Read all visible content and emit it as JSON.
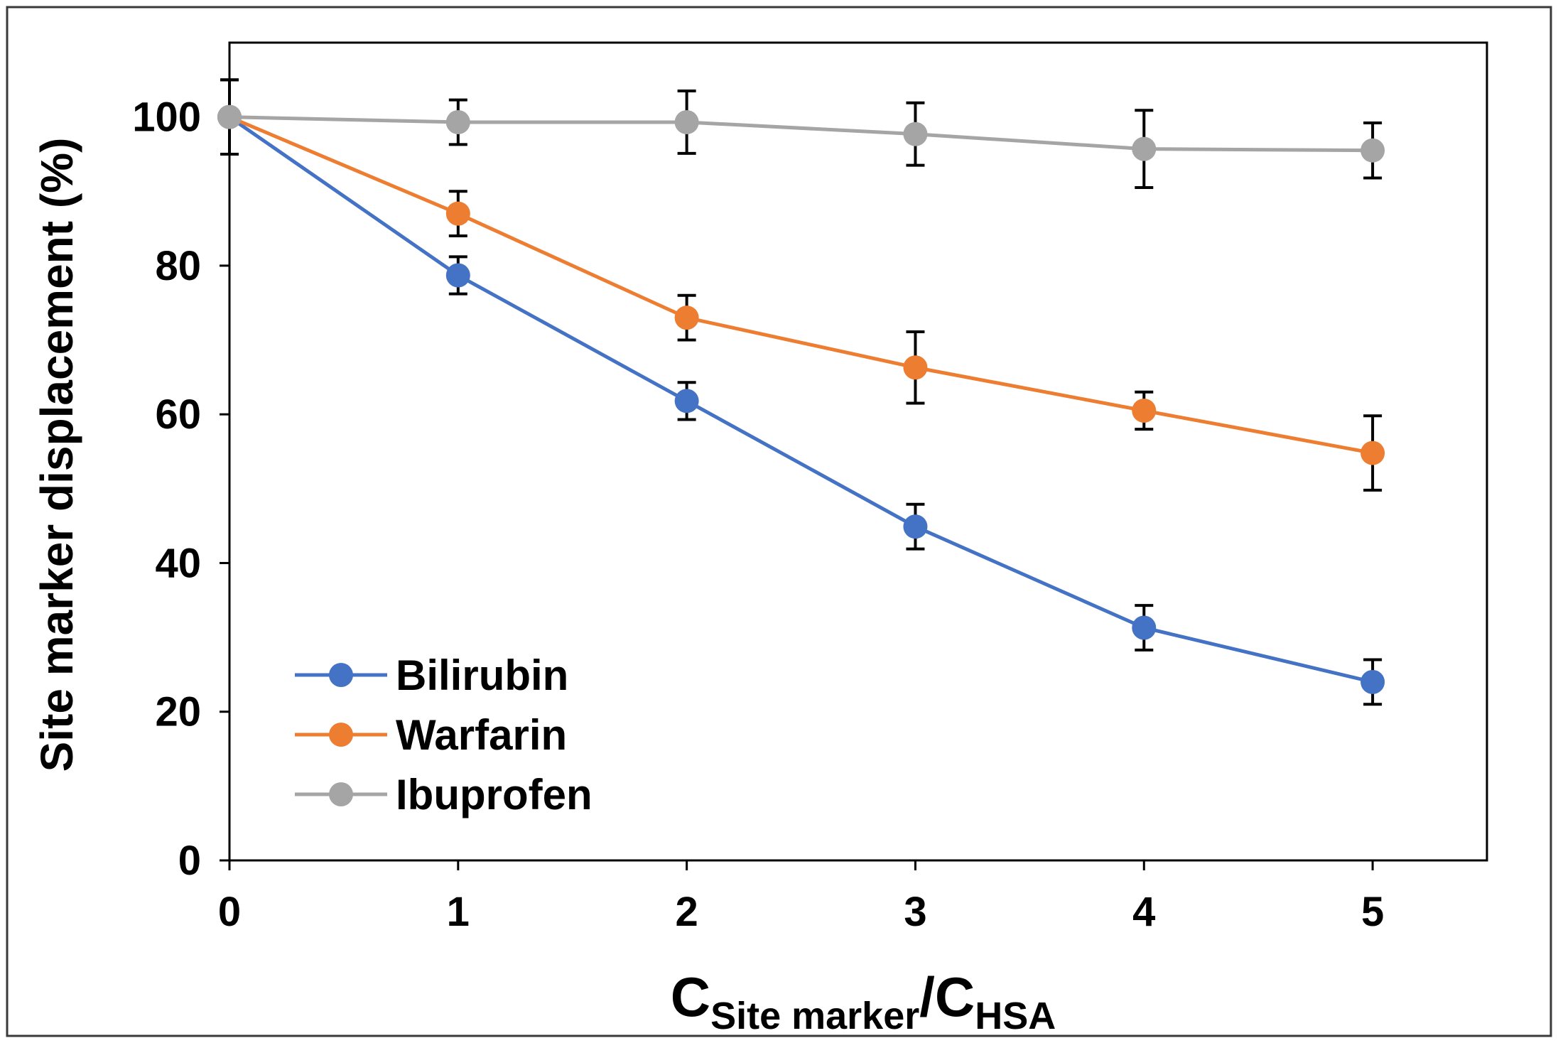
{
  "chart_data": {
    "type": "line",
    "title": "",
    "xlabel": {
      "main": "C",
      "sub1": "Site marker",
      "mid": "/C",
      "sub2": "HSA"
    },
    "ylabel": "Site marker displacement (%)",
    "x": [
      0,
      1,
      2,
      3,
      4,
      5
    ],
    "x_tick_labels": [
      "0",
      "1",
      "2",
      "3",
      "4",
      "5"
    ],
    "y_tick_labels": [
      "0",
      "20",
      "40",
      "60",
      "80",
      "100"
    ],
    "xlim": [
      0,
      5.5
    ],
    "ylim": [
      0,
      110
    ],
    "legend_position": "bottom-left",
    "series": [
      {
        "name": "Bilirubin",
        "color": "#4472C4",
        "values": [
          100,
          78.7,
          61.8,
          44.9,
          31.3,
          24.0
        ],
        "errors": [
          5.0,
          2.5,
          2.5,
          3.0,
          3.0,
          3.0
        ]
      },
      {
        "name": "Warfarin",
        "color": "#ED7D31",
        "values": [
          100,
          87.0,
          73.0,
          66.3,
          60.5,
          54.8
        ],
        "errors": [
          5.0,
          3.0,
          3.0,
          4.8,
          2.5,
          5.0
        ]
      },
      {
        "name": "Ibuprofen",
        "color": "#A5A5A5",
        "values": [
          100,
          99.3,
          99.3,
          97.7,
          95.7,
          95.5
        ],
        "errors": [
          5.0,
          3.0,
          4.2,
          4.2,
          5.2,
          3.7
        ]
      }
    ]
  }
}
